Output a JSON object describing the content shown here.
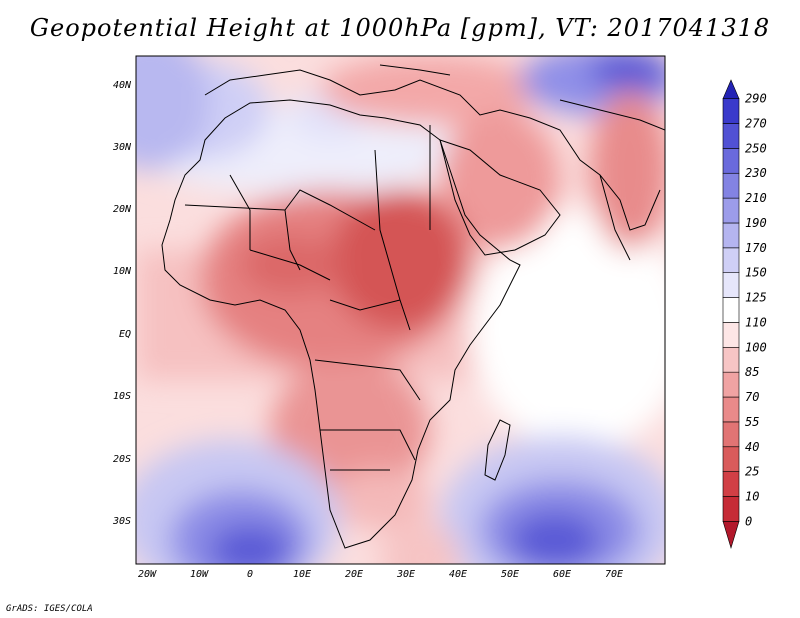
{
  "title": "Geopotential Height at 1000hPa [gpm], VT: 2017041318",
  "credit": "GrADS: IGES/COLA",
  "map": {
    "lon_labels": [
      "20W",
      "10W",
      "0",
      "10E",
      "20E",
      "30E",
      "40E",
      "50E",
      "60E",
      "70E"
    ],
    "lat_labels": [
      "40N",
      "30N",
      "20N",
      "10N",
      "EQ",
      "10S",
      "20S",
      "30S"
    ],
    "lon_range": [
      -22,
      80
    ],
    "lat_range": [
      -37,
      45
    ]
  },
  "colorbar": {
    "levels": [
      "0",
      "10",
      "25",
      "40",
      "55",
      "70",
      "85",
      "100",
      "110",
      "125",
      "150",
      "170",
      "190",
      "210",
      "230",
      "250",
      "270",
      "290"
    ],
    "colors": [
      "#b2182b",
      "#c62b36",
      "#d13f45",
      "#d95b5b",
      "#e17474",
      "#e98a8a",
      "#f0a3a3",
      "#f7c5c5",
      "#fde6e6",
      "#ffffff",
      "#e6e6fb",
      "#cfcff6",
      "#b5b5f0",
      "#9c9cea",
      "#8383e3",
      "#6a6adc",
      "#5151d4",
      "#3a3acb",
      "#2323b5"
    ]
  },
  "colors": {
    "land_border": "#000000",
    "ocean_low": "#ffffff"
  }
}
